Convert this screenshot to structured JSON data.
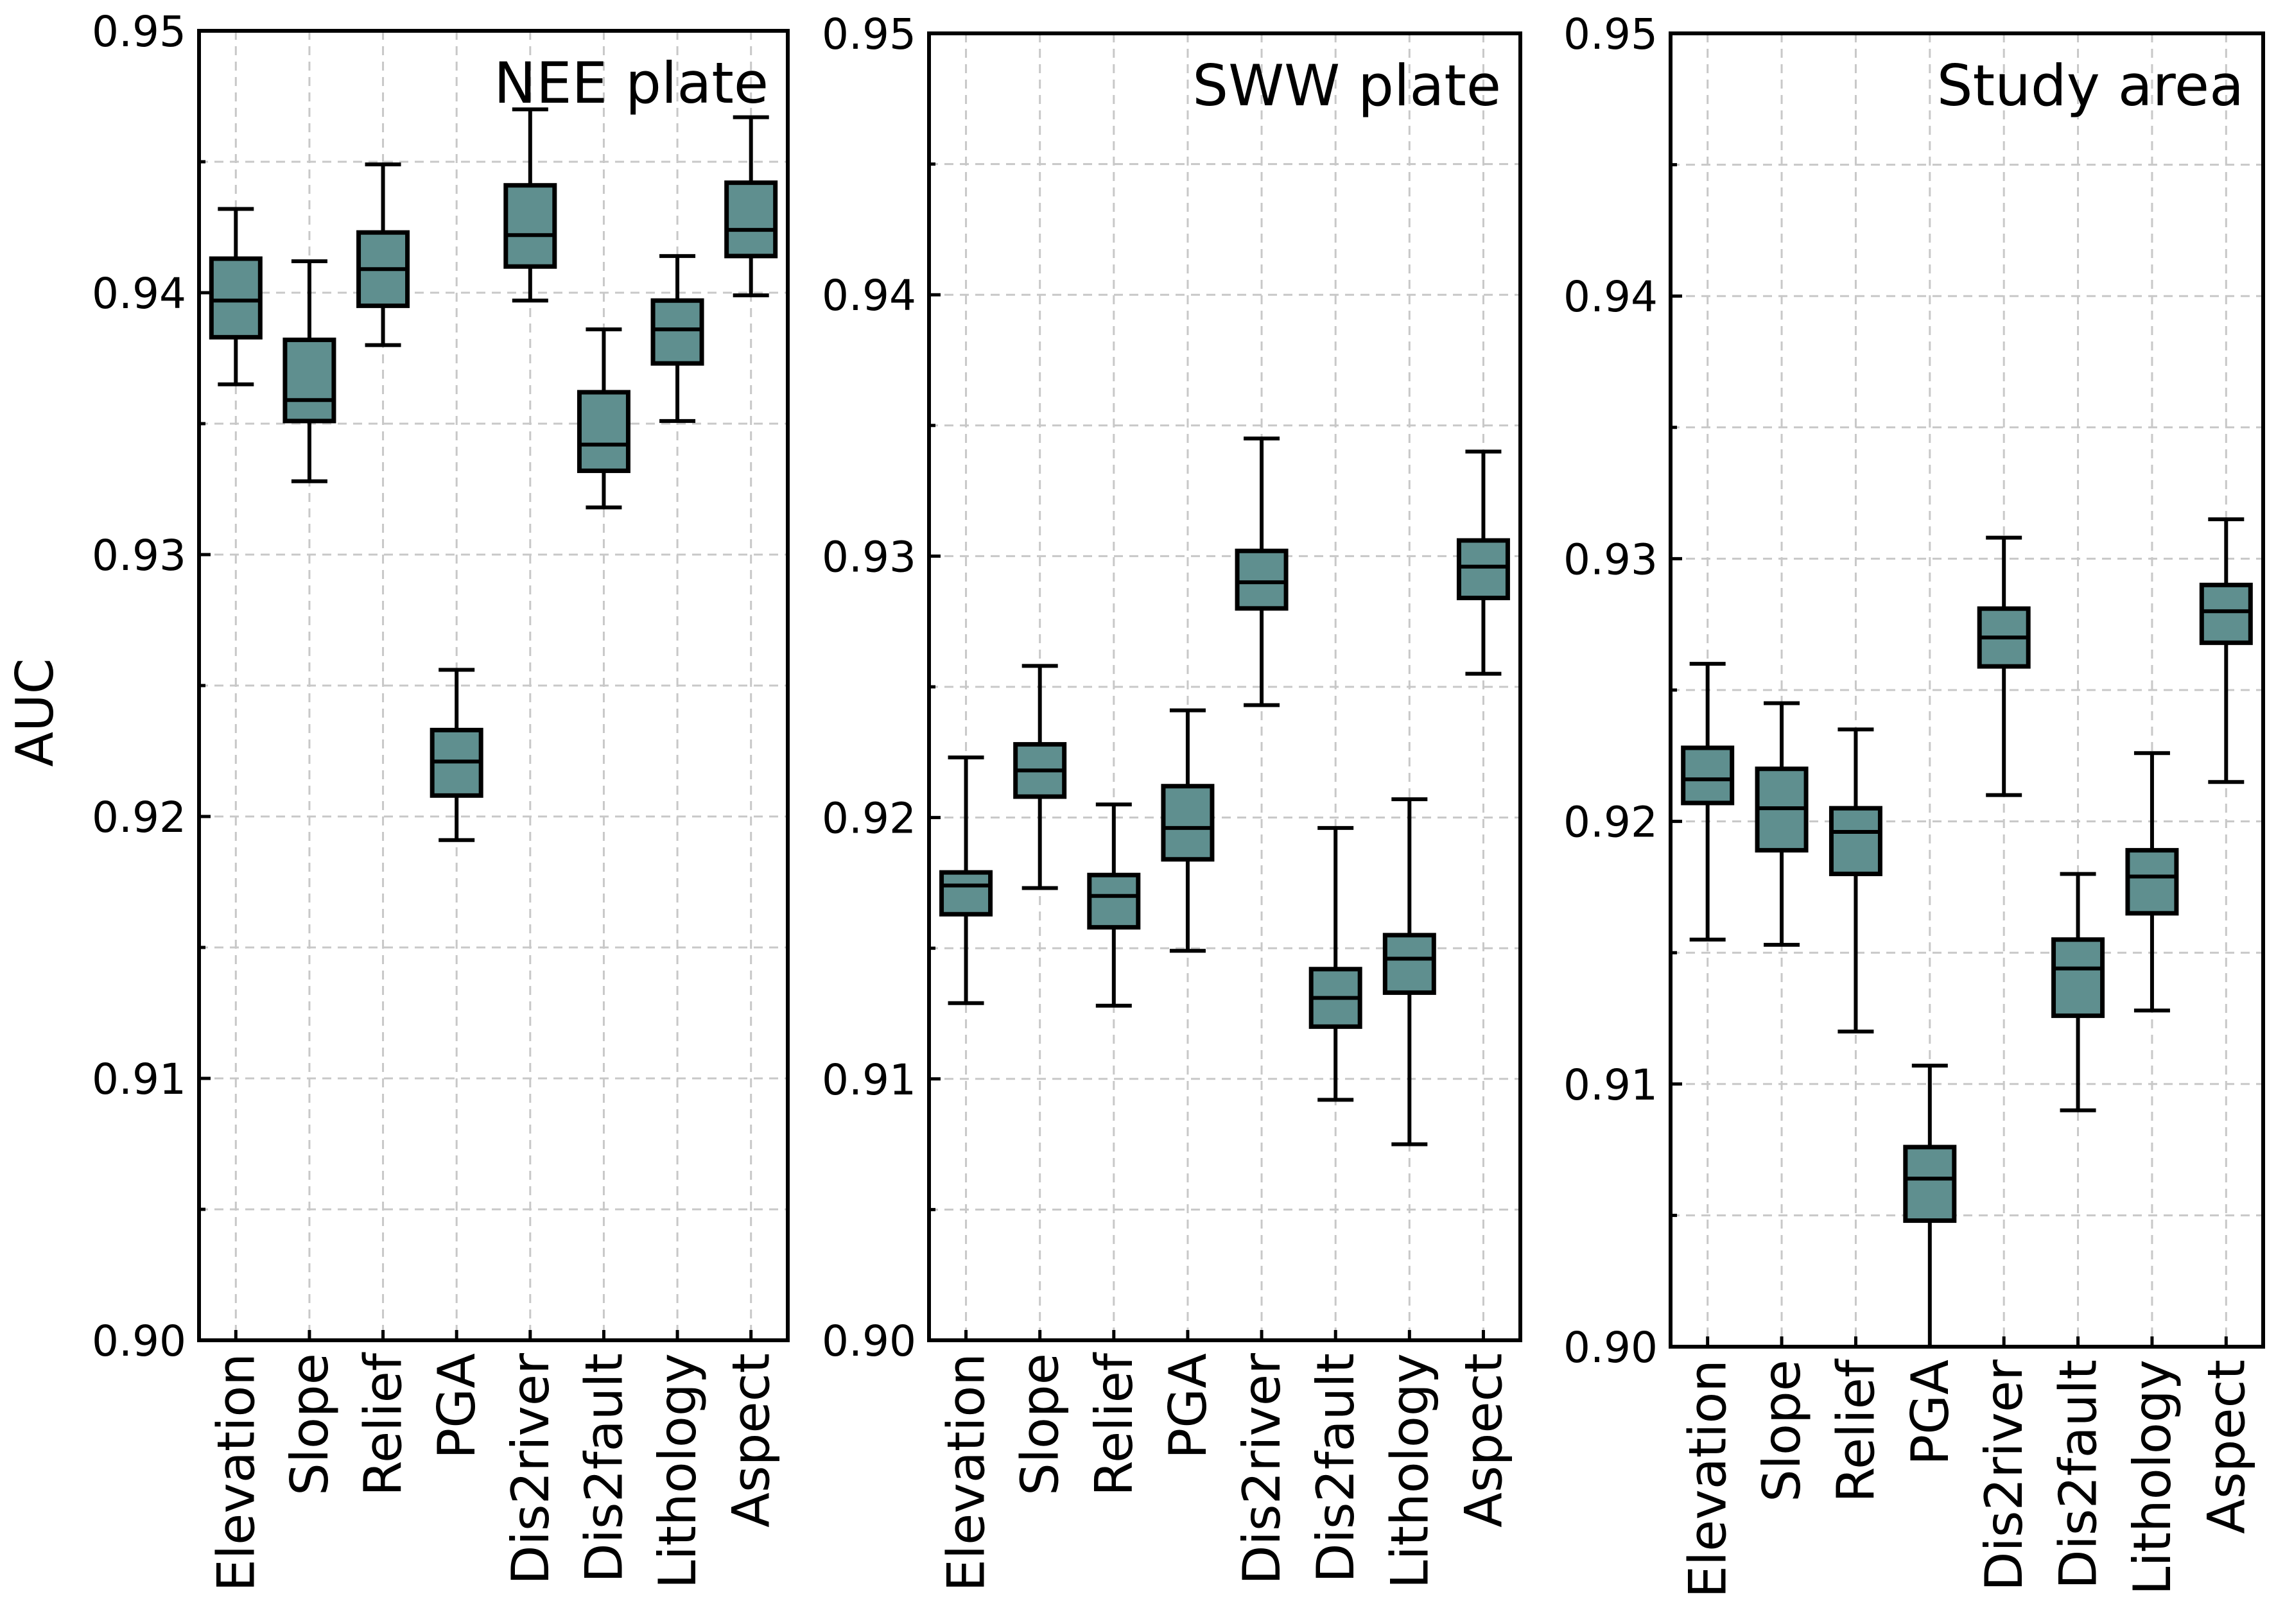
{
  "chart_data": {
    "type": "box",
    "ylabel": "AUC",
    "ylim": [
      0.9,
      0.95
    ],
    "yticks": [
      "0.90",
      "0.91",
      "0.92",
      "0.93",
      "0.94",
      "0.95"
    ],
    "box_color": "#5f8f8f",
    "panels": [
      {
        "title": "NEE plate",
        "categories": [
          "Elevation",
          "Slope",
          "Relief",
          "PGA",
          "Dis2river",
          "Dis2fault",
          "Lithology",
          "Aspect"
        ],
        "boxes": [
          {
            "min": 0.9365,
            "q1": 0.9383,
            "median": 0.9397,
            "q3": 0.9413,
            "max": 0.9432
          },
          {
            "min": 0.9328,
            "q1": 0.9351,
            "median": 0.9359,
            "q3": 0.9382,
            "max": 0.9412
          },
          {
            "min": 0.938,
            "q1": 0.9395,
            "median": 0.9409,
            "q3": 0.9423,
            "max": 0.9449
          },
          {
            "min": 0.9191,
            "q1": 0.9208,
            "median": 0.9221,
            "q3": 0.9233,
            "max": 0.9256
          },
          {
            "min": 0.9397,
            "q1": 0.941,
            "median": 0.9422,
            "q3": 0.9441,
            "max": 0.947
          },
          {
            "min": 0.9318,
            "q1": 0.9332,
            "median": 0.9342,
            "q3": 0.9362,
            "max": 0.9386
          },
          {
            "min": 0.9351,
            "q1": 0.9373,
            "median": 0.9386,
            "q3": 0.9397,
            "max": 0.9414
          },
          {
            "min": 0.9399,
            "q1": 0.9414,
            "median": 0.9424,
            "q3": 0.9442,
            "max": 0.9467
          }
        ]
      },
      {
        "title": "SWW plate",
        "categories": [
          "Elevation",
          "Slope",
          "Relief",
          "PGA",
          "Dis2river",
          "Dis2fault",
          "Lithology",
          "Aspect"
        ],
        "boxes": [
          {
            "min": 0.9129,
            "q1": 0.9163,
            "median": 0.9174,
            "q3": 0.9179,
            "max": 0.9223
          },
          {
            "min": 0.9173,
            "q1": 0.9208,
            "median": 0.9218,
            "q3": 0.9228,
            "max": 0.9258
          },
          {
            "min": 0.9128,
            "q1": 0.9158,
            "median": 0.917,
            "q3": 0.9178,
            "max": 0.9205
          },
          {
            "min": 0.9149,
            "q1": 0.9184,
            "median": 0.9196,
            "q3": 0.9212,
            "max": 0.9241
          },
          {
            "min": 0.9243,
            "q1": 0.928,
            "median": 0.929,
            "q3": 0.9302,
            "max": 0.9345
          },
          {
            "min": 0.9092,
            "q1": 0.912,
            "median": 0.9131,
            "q3": 0.9142,
            "max": 0.9196
          },
          {
            "min": 0.9075,
            "q1": 0.9133,
            "median": 0.9146,
            "q3": 0.9155,
            "max": 0.9207
          },
          {
            "min": 0.9255,
            "q1": 0.9284,
            "median": 0.9296,
            "q3": 0.9306,
            "max": 0.934
          }
        ]
      },
      {
        "title": "Study area",
        "categories": [
          "Elevation",
          "Slope",
          "Relief",
          "PGA",
          "Dis2river",
          "Dis2fault",
          "Lithology",
          "Aspect"
        ],
        "boxes": [
          {
            "min": 0.9155,
            "q1": 0.9207,
            "median": 0.9216,
            "q3": 0.9228,
            "max": 0.926
          },
          {
            "min": 0.9153,
            "q1": 0.9189,
            "median": 0.9205,
            "q3": 0.922,
            "max": 0.9245
          },
          {
            "min": 0.912,
            "q1": 0.918,
            "median": 0.9196,
            "q3": 0.9205,
            "max": 0.9235
          },
          {
            "min": 0.9,
            "q1": 0.9048,
            "median": 0.9064,
            "q3": 0.9076,
            "max": 0.9107
          },
          {
            "min": 0.921,
            "q1": 0.9259,
            "median": 0.927,
            "q3": 0.9281,
            "max": 0.9308
          },
          {
            "min": 0.909,
            "q1": 0.9126,
            "median": 0.9144,
            "q3": 0.9155,
            "max": 0.918
          },
          {
            "min": 0.9128,
            "q1": 0.9165,
            "median": 0.9179,
            "q3": 0.9189,
            "max": 0.9226
          },
          {
            "min": 0.9215,
            "q1": 0.9268,
            "median": 0.928,
            "q3": 0.929,
            "max": 0.9315
          }
        ]
      }
    ]
  }
}
